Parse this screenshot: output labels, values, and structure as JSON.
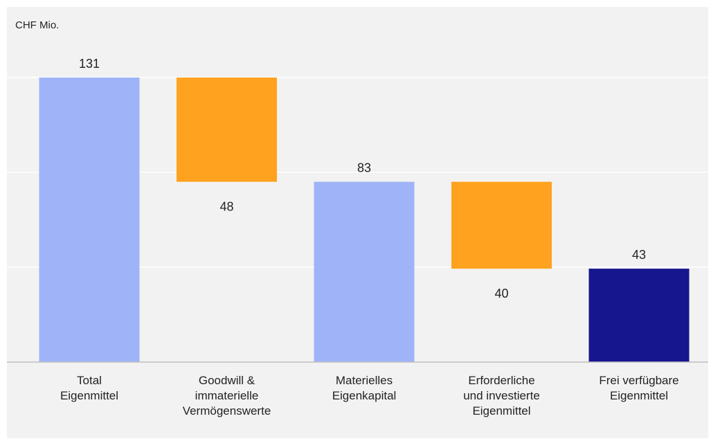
{
  "chart_data": {
    "type": "bar",
    "unit_label": "CHF Mio.",
    "categories": [
      [
        "Total",
        "Eigenmittel"
      ],
      [
        "Goodwill &",
        "immaterielle",
        "Vermögenswerte"
      ],
      [
        "Materielles",
        "Eigenkapital"
      ],
      [
        "Erforderliche",
        "und investierte",
        "Eigenmittel"
      ],
      [
        "Frei verfügbare",
        "Eigenmittel"
      ]
    ],
    "bars": [
      {
        "start": 0,
        "end": 131,
        "label": "131",
        "label_pos": "above",
        "role": "total"
      },
      {
        "start": 83,
        "end": 131,
        "label": "48",
        "label_pos": "below",
        "role": "decrease"
      },
      {
        "start": 0,
        "end": 83,
        "label": "83",
        "label_pos": "above",
        "role": "total"
      },
      {
        "start": 43,
        "end": 83,
        "label": "40",
        "label_pos": "below",
        "role": "decrease"
      },
      {
        "start": 0,
        "end": 43,
        "label": "43",
        "label_pos": "above",
        "role": "final"
      }
    ],
    "ylim": [
      0,
      131
    ],
    "grid": true,
    "gridlines": [
      0,
      43.7,
      87.4,
      131
    ],
    "colors": {
      "total": "#9fb4f8",
      "decrease": "#ffa21f",
      "final": "#16168f",
      "grid": "#ffffff",
      "axis": "#bfbfbf",
      "background": "#f2f2f2"
    }
  }
}
